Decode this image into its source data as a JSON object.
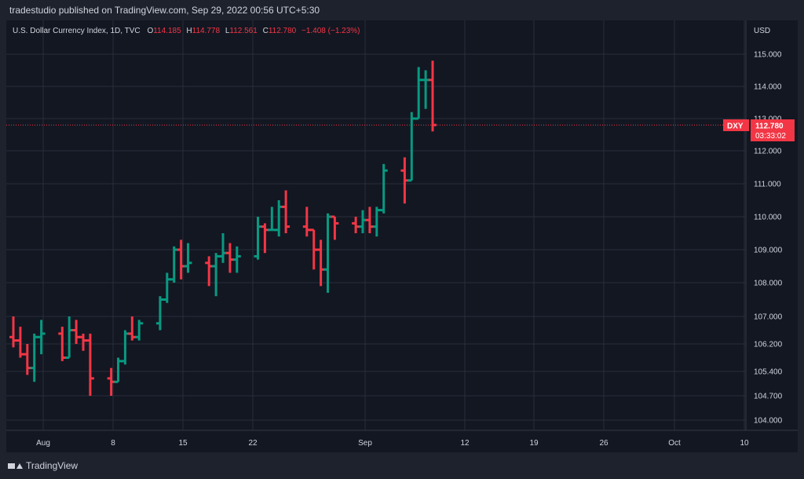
{
  "header": {
    "publisher": "tradestudio published on TradingView.com, Sep 29, 2022 00:56 UTC+5:30"
  },
  "legend": {
    "symbol": "U.S. Dollar Currency Index, 1D, TVC",
    "open_label": "O",
    "open": "114.185",
    "high_label": "H",
    "high": "114.778",
    "low_label": "L",
    "low": "112.561",
    "close_label": "C",
    "close": "112.780",
    "change": "−1.408 (−1.23%)"
  },
  "footer": {
    "brand": "TradingView"
  },
  "colors": {
    "up": "#089981",
    "down": "#f23645",
    "background": "#131722",
    "grid": "#2a2e39"
  },
  "chart_data": {
    "type": "ohlc",
    "currency": "USD",
    "yticks": [
      "115.000",
      "114.000",
      "113.000",
      "112.000",
      "111.000",
      "110.000",
      "109.000",
      "108.000",
      "107.000",
      "106.200",
      "105.400",
      "104.700",
      "104.000"
    ],
    "xticks": [
      "Aug",
      "8",
      "15",
      "22",
      "Sep",
      "12",
      "19",
      "26",
      "Oct",
      "10"
    ],
    "price_tag": {
      "symbol": "DXY",
      "price": "112.780",
      "countdown": "03:33:02"
    },
    "bars": [
      {
        "o": 106.4,
        "h": 107.0,
        "l": 106.1,
        "c": 106.3
      },
      {
        "o": 106.3,
        "h": 106.7,
        "l": 105.8,
        "c": 105.9
      },
      {
        "o": 105.9,
        "h": 106.2,
        "l": 105.3,
        "c": 105.5
      },
      {
        "o": 105.5,
        "h": 106.5,
        "l": 105.1,
        "c": 106.4
      },
      {
        "o": 106.4,
        "h": 106.9,
        "l": 105.9,
        "c": 106.5
      },
      {
        "o": 106.5,
        "h": 106.7,
        "l": 105.7,
        "c": 105.8
      },
      {
        "o": 105.8,
        "h": 107.0,
        "l": 105.8,
        "c": 106.6
      },
      {
        "o": 106.6,
        "h": 106.9,
        "l": 106.2,
        "c": 106.4
      },
      {
        "o": 106.4,
        "h": 106.5,
        "l": 106.0,
        "c": 106.3
      },
      {
        "o": 106.3,
        "h": 106.5,
        "l": 104.7,
        "c": 105.2
      },
      {
        "o": 105.2,
        "h": 105.5,
        "l": 104.7,
        "c": 105.1
      },
      {
        "o": 105.1,
        "h": 105.8,
        "l": 105.1,
        "c": 105.7
      },
      {
        "o": 105.7,
        "h": 106.6,
        "l": 105.6,
        "c": 106.5
      },
      {
        "o": 106.5,
        "h": 107.0,
        "l": 106.3,
        "c": 106.4
      },
      {
        "o": 106.4,
        "h": 106.9,
        "l": 106.3,
        "c": 106.8
      },
      {
        "o": 106.8,
        "h": 107.6,
        "l": 106.6,
        "c": 107.5
      },
      {
        "o": 107.5,
        "h": 108.3,
        "l": 107.4,
        "c": 108.1
      },
      {
        "o": 108.1,
        "h": 109.1,
        "l": 108.0,
        "c": 109.0
      },
      {
        "o": 109.0,
        "h": 109.3,
        "l": 108.1,
        "c": 108.5
      },
      {
        "o": 108.5,
        "h": 109.2,
        "l": 108.3,
        "c": 108.6
      },
      {
        "o": 108.6,
        "h": 108.8,
        "l": 107.9,
        "c": 108.5
      },
      {
        "o": 108.5,
        "h": 108.9,
        "l": 107.6,
        "c": 108.8
      },
      {
        "o": 108.8,
        "h": 109.5,
        "l": 108.6,
        "c": 108.9
      },
      {
        "o": 108.9,
        "h": 109.2,
        "l": 108.3,
        "c": 108.7
      },
      {
        "o": 108.7,
        "h": 109.1,
        "l": 108.3,
        "c": 108.8
      },
      {
        "o": 108.8,
        "h": 110.0,
        "l": 108.7,
        "c": 109.7
      },
      {
        "o": 109.7,
        "h": 109.8,
        "l": 108.9,
        "c": 109.6
      },
      {
        "o": 109.6,
        "h": 110.3,
        "l": 109.6,
        "c": 109.6
      },
      {
        "o": 109.6,
        "h": 110.5,
        "l": 109.4,
        "c": 110.3
      },
      {
        "o": 110.3,
        "h": 110.8,
        "l": 109.5,
        "c": 109.7
      },
      {
        "o": 109.7,
        "h": 110.3,
        "l": 109.4,
        "c": 109.6
      },
      {
        "o": 109.6,
        "h": 109.6,
        "l": 108.4,
        "c": 109.0
      },
      {
        "o": 109.0,
        "h": 109.3,
        "l": 107.9,
        "c": 108.4
      },
      {
        "o": 108.4,
        "h": 110.1,
        "l": 107.7,
        "c": 110.0
      },
      {
        "o": 110.0,
        "h": 110.0,
        "l": 109.3,
        "c": 109.8
      },
      {
        "o": 109.8,
        "h": 110.0,
        "l": 109.5,
        "c": 109.7
      },
      {
        "o": 109.7,
        "h": 110.2,
        "l": 109.5,
        "c": 109.9
      },
      {
        "o": 109.9,
        "h": 110.3,
        "l": 109.5,
        "c": 109.7
      },
      {
        "o": 109.7,
        "h": 110.3,
        "l": 109.4,
        "c": 110.2
      },
      {
        "o": 110.2,
        "h": 111.6,
        "l": 110.1,
        "c": 111.4
      },
      {
        "o": 111.4,
        "h": 111.8,
        "l": 110.4,
        "c": 111.1
      },
      {
        "o": 111.1,
        "h": 113.2,
        "l": 111.1,
        "c": 113.0
      },
      {
        "o": 113.0,
        "h": 114.6,
        "l": 113.0,
        "c": 114.2
      },
      {
        "o": 114.2,
        "h": 114.5,
        "l": 113.3,
        "c": 114.2
      },
      {
        "o": 114.2,
        "h": 114.8,
        "l": 112.6,
        "c": 112.8
      }
    ]
  }
}
